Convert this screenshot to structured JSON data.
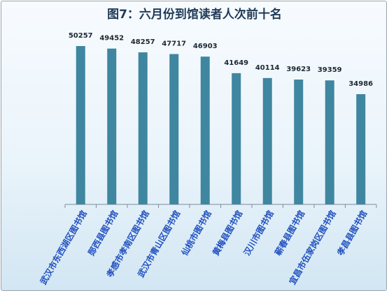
{
  "chart_data": {
    "type": "bar",
    "title": "图7：六月份到馆读者人次前十名",
    "categories": [
      "武汉市东西湖区图书馆",
      "郧西县图书馆",
      "孝感市孝南区图书馆",
      "武汉市青山区图书馆",
      "仙桃市图书馆",
      "黄梅县图书馆",
      "汉川市图书馆",
      "蕲春县图书馆",
      "宜昌市伍家岗区图书馆",
      "孝昌县图书馆"
    ],
    "values": [
      50257,
      49452,
      48257,
      47717,
      46903,
      41649,
      40114,
      39623,
      39359,
      34986
    ],
    "ylim": [
      0,
      60000
    ],
    "grid": false,
    "colors": {
      "bar": "#3f86a0",
      "axis": "#7f8c99"
    }
  }
}
